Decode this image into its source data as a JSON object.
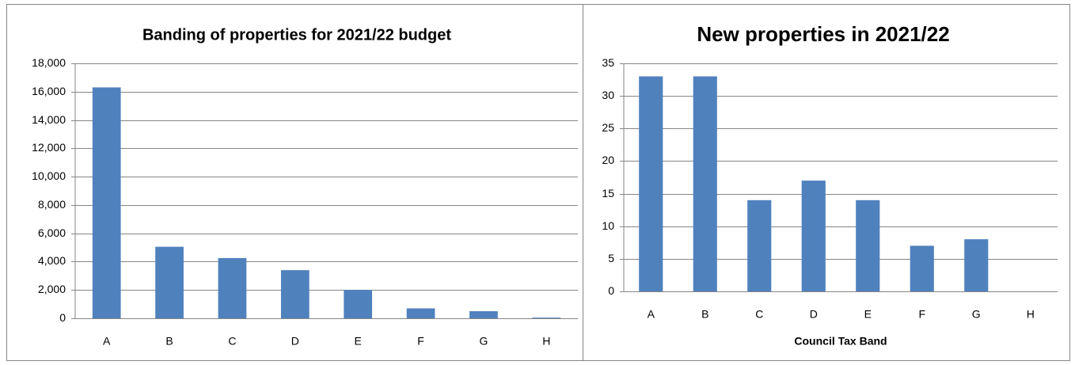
{
  "chart_data": [
    {
      "type": "bar",
      "title": "Banding of  properties for 2021/22 budget",
      "categories": [
        "A",
        "B",
        "C",
        "D",
        "E",
        "F",
        "G",
        "H"
      ],
      "values": [
        16300,
        5050,
        4250,
        3400,
        2000,
        700,
        500,
        50
      ],
      "color": "#4f81bd",
      "ylim": [
        0,
        18000
      ],
      "yticks": [
        0,
        {
          "value": 2000,
          "label": "2,000"
        },
        {
          "value": 4000,
          "label": "4,000"
        },
        {
          "value": 6000,
          "label": "6,000"
        },
        {
          "value": 8000,
          "label": "8,000"
        },
        {
          "value": 10000,
          "label": "10,000"
        },
        {
          "value": 12000,
          "label": "12,000"
        },
        {
          "value": 14000,
          "label": "14,000"
        },
        {
          "value": 16000,
          "label": "16,000"
        },
        {
          "value": 18000,
          "label": "18,000"
        }
      ],
      "grid": true
    },
    {
      "type": "bar",
      "title": "New properties in 2021/22",
      "x_label": "Council Tax Band",
      "categories": [
        "A",
        "B",
        "C",
        "D",
        "E",
        "F",
        "G",
        "H"
      ],
      "values": [
        33,
        33,
        14,
        17,
        14,
        7,
        8,
        0
      ],
      "color": "#4f81bd",
      "ylim": [
        0,
        35
      ],
      "yticks": [
        0,
        5,
        10,
        15,
        20,
        25,
        30,
        35
      ],
      "grid": true
    }
  ]
}
